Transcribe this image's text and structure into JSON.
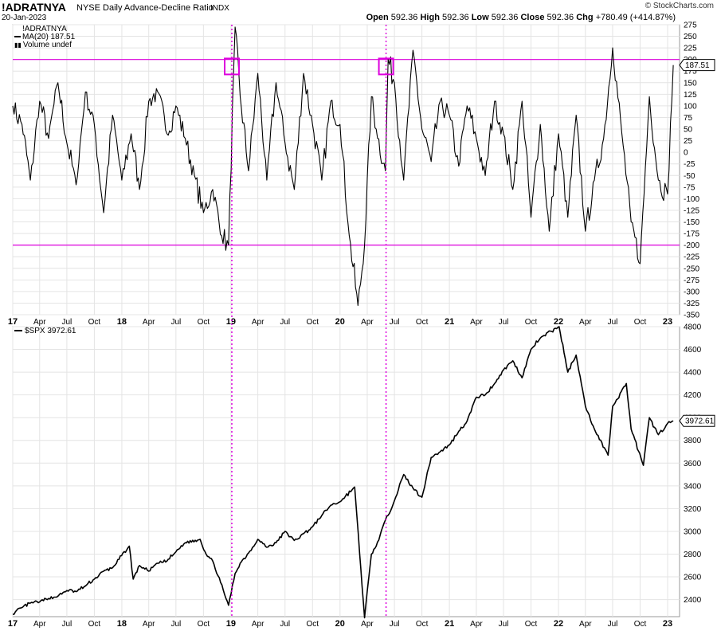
{
  "header": {
    "symbol": "!ADRATNYA",
    "description": "NYSE Daily Advance-Decline Ratio",
    "exchange": "INDX",
    "date": "20-Jan-2023",
    "brand": "© StockCharts.com",
    "open_label": "Open",
    "open": "592.36",
    "high_label": "High",
    "high": "592.36",
    "low_label": "Low",
    "low": "592.36",
    "close_label": "Close",
    "close": "592.36",
    "chg_label": "Chg",
    "chg": "+780.49 (+414.87%)"
  },
  "legend_top": {
    "symbol": "!ADRATNYA",
    "ma": "MA(20) 187.51",
    "volume": "Volume undef"
  },
  "legend_bottom": {
    "label": "$SPX 3972.61"
  },
  "colors": {
    "line": "#000000",
    "reference": "#dd00dd",
    "grid": "#e4e4e4",
    "price_tag_bg": "#ffffff"
  },
  "chart_data": [
    {
      "type": "line",
      "title": "!ADRATNYA NYSE Daily Advance-Decline Ratio",
      "series": [
        {
          "name": "MA(20)",
          "x": [
            "2017-01-01",
            "2017-02-01",
            "2017-03-01",
            "2017-04-01",
            "2017-05-01",
            "2017-06-01",
            "2017-07-01",
            "2017-08-01",
            "2017-09-01",
            "2017-10-01",
            "2017-11-01",
            "2017-12-01",
            "2018-01-01",
            "2018-02-01",
            "2018-03-01",
            "2018-04-01",
            "2018-05-01",
            "2018-06-01",
            "2018-07-01",
            "2018-08-01",
            "2018-09-01",
            "2018-10-01",
            "2018-11-01",
            "2018-12-01",
            "2018-12-24",
            "2019-01-15",
            "2019-02-01",
            "2019-03-01",
            "2019-04-01",
            "2019-05-01",
            "2019-06-01",
            "2019-07-01",
            "2019-08-01",
            "2019-09-01",
            "2019-10-01",
            "2019-11-01",
            "2019-12-01",
            "2020-01-01",
            "2020-02-01",
            "2020-03-01",
            "2020-03-23",
            "2020-04-15",
            "2020-05-01",
            "2020-06-01",
            "2020-06-10",
            "2020-07-01",
            "2020-08-01",
            "2020-09-01",
            "2020-10-01",
            "2020-11-01",
            "2020-12-01",
            "2021-01-01",
            "2021-02-01",
            "2021-03-01",
            "2021-04-01",
            "2021-05-01",
            "2021-06-01",
            "2021-07-01",
            "2021-08-01",
            "2021-09-01",
            "2021-10-01",
            "2021-11-01",
            "2021-12-01",
            "2022-01-01",
            "2022-02-01",
            "2022-03-01",
            "2022-04-01",
            "2022-05-01",
            "2022-06-01",
            "2022-07-01",
            "2022-08-01",
            "2022-09-01",
            "2022-10-01",
            "2022-11-01",
            "2022-12-01",
            "2023-01-01",
            "2023-01-20"
          ],
          "values": [
            100,
            60,
            -60,
            110,
            30,
            150,
            20,
            -70,
            130,
            60,
            -130,
            80,
            -60,
            40,
            -80,
            110,
            130,
            40,
            100,
            30,
            -50,
            -130,
            -80,
            -180,
            -200,
            270,
            120,
            -40,
            170,
            -60,
            150,
            20,
            -80,
            170,
            60,
            -60,
            110,
            60,
            -180,
            -330,
            -200,
            120,
            50,
            -40,
            200,
            150,
            -60,
            220,
            50,
            -20,
            110,
            80,
            -30,
            100,
            30,
            -50,
            110,
            40,
            -80,
            110,
            -140,
            60,
            -170,
            40,
            -140,
            80,
            -170,
            -60,
            30,
            225,
            40,
            -150,
            -240,
            120,
            -60,
            -90,
            188
          ],
          "ma_label": "MA(20)"
        }
      ],
      "ylim": [
        -350,
        275
      ],
      "yticks": [
        275,
        250,
        225,
        200,
        175,
        150,
        125,
        100,
        75,
        50,
        25,
        0,
        -25,
        -50,
        -75,
        -100,
        -125,
        -150,
        -175,
        -200,
        -225,
        -250,
        -275,
        -300,
        -325,
        -350
      ],
      "reference_lines": [
        200,
        -200
      ],
      "last_value_tag": "187.51",
      "xlim": [
        "2017-01-01",
        "2023-02-10"
      ],
      "xtick_labels": [
        "17",
        "Apr",
        "Jul",
        "Oct",
        "18",
        "Apr",
        "Jul",
        "Oct",
        "19",
        "Apr",
        "Jul",
        "Oct",
        "20",
        "Apr",
        "Jul",
        "Oct",
        "21",
        "Apr",
        "Jul",
        "Oct",
        "22",
        "Apr",
        "Jul",
        "Oct",
        "23"
      ],
      "xtick_dates": [
        "2017-01-01",
        "2017-04-01",
        "2017-07-01",
        "2017-10-01",
        "2018-01-01",
        "2018-04-01",
        "2018-07-01",
        "2018-10-01",
        "2019-01-01",
        "2019-04-01",
        "2019-07-01",
        "2019-10-01",
        "2020-01-01",
        "2020-04-01",
        "2020-07-01",
        "2020-10-01",
        "2021-01-01",
        "2021-04-01",
        "2021-07-01",
        "2021-10-01",
        "2022-01-01",
        "2022-04-01",
        "2022-07-01",
        "2022-10-01",
        "2023-01-01"
      ],
      "bold_ticks": [
        "17",
        "18",
        "19",
        "20",
        "21",
        "22",
        "23"
      ],
      "vertical_markers": [
        "2019-01-04",
        "2020-06-03"
      ],
      "highlight_boxes": [
        {
          "x": "2019-01-04",
          "y": 185
        },
        {
          "x": "2020-06-03",
          "y": 185
        }
      ],
      "grid": true
    },
    {
      "type": "line",
      "title": "$SPX",
      "series": [
        {
          "name": "$SPX",
          "x": [
            "2017-01-01",
            "2017-02-01",
            "2017-03-01",
            "2017-04-01",
            "2017-05-01",
            "2017-06-01",
            "2017-07-01",
            "2017-08-01",
            "2017-09-01",
            "2017-10-01",
            "2017-11-01",
            "2017-12-01",
            "2018-01-26",
            "2018-02-08",
            "2018-03-01",
            "2018-04-01",
            "2018-05-01",
            "2018-06-01",
            "2018-07-01",
            "2018-08-01",
            "2018-09-20",
            "2018-10-10",
            "2018-11-01",
            "2018-12-24",
            "2019-01-15",
            "2019-02-01",
            "2019-03-01",
            "2019-04-01",
            "2019-05-01",
            "2019-06-01",
            "2019-07-01",
            "2019-08-01",
            "2019-09-01",
            "2019-10-01",
            "2019-11-01",
            "2019-12-01",
            "2020-01-01",
            "2020-02-19",
            "2020-03-23",
            "2020-04-15",
            "2020-05-01",
            "2020-06-01",
            "2020-07-01",
            "2020-08-01",
            "2020-09-01",
            "2020-10-01",
            "2020-11-01",
            "2020-12-01",
            "2021-01-01",
            "2021-02-01",
            "2021-03-01",
            "2021-04-01",
            "2021-05-01",
            "2021-06-01",
            "2021-07-01",
            "2021-08-01",
            "2021-09-01",
            "2021-10-01",
            "2021-11-01",
            "2022-01-03",
            "2022-02-01",
            "2022-03-01",
            "2022-04-01",
            "2022-05-01",
            "2022-06-16",
            "2022-07-01",
            "2022-08-16",
            "2022-09-01",
            "2022-10-12",
            "2022-11-01",
            "2022-12-01",
            "2023-01-01",
            "2023-01-20"
          ],
          "values": [
            2270,
            2330,
            2370,
            2380,
            2410,
            2430,
            2480,
            2470,
            2520,
            2580,
            2650,
            2680,
            2870,
            2580,
            2700,
            2650,
            2720,
            2740,
            2820,
            2900,
            2930,
            2800,
            2740,
            2350,
            2630,
            2720,
            2810,
            2930,
            2860,
            2900,
            3000,
            2920,
            2980,
            3040,
            3140,
            3230,
            3260,
            3390,
            2240,
            2800,
            2870,
            3100,
            3270,
            3500,
            3380,
            3300,
            3650,
            3700,
            3760,
            3880,
            3970,
            4180,
            4200,
            4300,
            4420,
            4500,
            4350,
            4600,
            4700,
            4800,
            4400,
            4550,
            4100,
            3900,
            3670,
            4100,
            4300,
            3900,
            3580,
            4000,
            3850,
            3950,
            3972
          ]
        }
      ],
      "ylim": [
        2250,
        4800
      ],
      "yticks": [
        4800,
        4600,
        4400,
        4200,
        4000,
        3800,
        3600,
        3400,
        3200,
        3000,
        2800,
        2600,
        2400
      ],
      "last_value_tag": "3972.61",
      "xtick_labels": [
        "17",
        "Apr",
        "Jul",
        "Oct",
        "18",
        "Apr",
        "Jul",
        "Oct",
        "19",
        "Apr",
        "Jul",
        "Oct",
        "20",
        "Apr",
        "Jul",
        "Oct",
        "21",
        "Apr",
        "Jul",
        "Oct",
        "22",
        "Apr",
        "Jul",
        "Oct",
        "23"
      ],
      "grid": true
    }
  ]
}
